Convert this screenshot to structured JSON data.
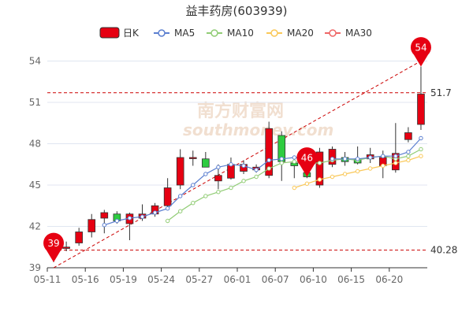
{
  "chart_data": {
    "type": "candlestick",
    "title": "益丰药房(603939)",
    "legend": {
      "placement": "top-center",
      "items": [
        {
          "key": "kline",
          "label": "日K",
          "color": "#e60012"
        },
        {
          "key": "ma5",
          "label": "MA5",
          "color": "#5b7fd0"
        },
        {
          "key": "ma10",
          "label": "MA10",
          "color": "#91cc75"
        },
        {
          "key": "ma20",
          "label": "MA20",
          "color": "#fac858"
        },
        {
          "key": "ma30",
          "label": "MA30",
          "color": "#ee6666"
        }
      ]
    },
    "colors": {
      "up": "#e60012",
      "down": "#2ecc40",
      "grid": "#e0e6f1",
      "axis": "#333333",
      "ref_line": "#cc0000",
      "trend_line": "#cc0000",
      "watermark": "#e8c9b0"
    },
    "watermark": "南方财富网 southmoney.com",
    "ylim": [
      39,
      55
    ],
    "y_ticks": [
      39,
      42,
      45,
      48,
      51,
      54
    ],
    "x_tick_labels": [
      "05-11",
      "05-16",
      "05-19",
      "05-24",
      "05-27",
      "06-01",
      "06-07",
      "06-10",
      "06-15",
      "06-20"
    ],
    "x_tick_indices": [
      0,
      3,
      6,
      9,
      12,
      15,
      18,
      21,
      24,
      27
    ],
    "x_tick_dates": [
      "05-11",
      "05-16",
      "05-19",
      "05-24",
      "05-27",
      "06-01",
      "06-07",
      "06-10",
      "06-15",
      "06-20"
    ],
    "candles": [
      {
        "o": 39.9,
        "c": 40.6,
        "h": 41.5,
        "l": 39.4
      },
      {
        "o": 40.4,
        "c": 40.5,
        "h": 40.9,
        "l": 40.2
      },
      {
        "o": 40.8,
        "c": 41.6,
        "h": 41.9,
        "l": 40.6
      },
      {
        "o": 41.6,
        "c": 42.5,
        "h": 42.9,
        "l": 41.2
      },
      {
        "o": 42.6,
        "c": 43.0,
        "h": 43.2,
        "l": 41.5
      },
      {
        "o": 42.9,
        "c": 42.4,
        "h": 43.1,
        "l": 42.2
      },
      {
        "o": 42.2,
        "c": 42.9,
        "h": 43.0,
        "l": 41.0
      },
      {
        "o": 42.6,
        "c": 42.9,
        "h": 43.6,
        "l": 42.4
      },
      {
        "o": 42.9,
        "c": 43.5,
        "h": 43.7,
        "l": 42.7
      },
      {
        "o": 43.5,
        "c": 44.8,
        "h": 45.5,
        "l": 43.3
      },
      {
        "o": 45.0,
        "c": 47.0,
        "h": 47.6,
        "l": 44.7
      },
      {
        "o": 47.0,
        "c": 47.0,
        "h": 47.5,
        "l": 46.4
      },
      {
        "o": 46.9,
        "c": 46.3,
        "h": 47.4,
        "l": 46.3
      },
      {
        "o": 45.3,
        "c": 45.7,
        "h": 46.5,
        "l": 44.7
      },
      {
        "o": 45.5,
        "c": 46.5,
        "h": 47.0,
        "l": 45.4
      },
      {
        "o": 46.0,
        "c": 46.5,
        "h": 46.8,
        "l": 45.8
      },
      {
        "o": 46.1,
        "c": 46.3,
        "h": 46.5,
        "l": 45.9
      },
      {
        "o": 45.7,
        "c": 49.1,
        "h": 49.6,
        "l": 45.5
      },
      {
        "o": 48.6,
        "c": 46.7,
        "h": 48.9,
        "l": 45.3
      },
      {
        "o": 46.6,
        "c": 46.4,
        "h": 46.9,
        "l": 45.5
      },
      {
        "o": 45.9,
        "c": 45.6,
        "h": 46.0,
        "l": 45.5
      },
      {
        "o": 45.0,
        "c": 47.4,
        "h": 47.7,
        "l": 44.8
      },
      {
        "o": 46.5,
        "c": 47.6,
        "h": 47.8,
        "l": 46.3
      },
      {
        "o": 47.0,
        "c": 46.7,
        "h": 47.4,
        "l": 46.4
      },
      {
        "o": 46.9,
        "c": 46.6,
        "h": 47.8,
        "l": 46.5
      },
      {
        "o": 46.9,
        "c": 47.2,
        "h": 47.7,
        "l": 46.6
      },
      {
        "o": 46.4,
        "c": 47.0,
        "h": 47.5,
        "l": 45.5
      },
      {
        "o": 46.1,
        "c": 47.3,
        "h": 49.5,
        "l": 45.9
      },
      {
        "o": 48.3,
        "c": 48.8,
        "h": 49.2,
        "l": 48.1
      },
      {
        "o": 49.4,
        "c": 51.6,
        "h": 53.6,
        "l": 49.0
      }
    ],
    "ma5": [
      null,
      null,
      null,
      null,
      42.1,
      42.4,
      42.6,
      42.7,
      43.0,
      43.3,
      44.2,
      45.0,
      45.8,
      46.3,
      46.5,
      46.4,
      46.1,
      46.8,
      46.9,
      47.0,
      46.9,
      null,
      46.9,
      46.9,
      46.9,
      47.0,
      47.1,
      47.1,
      47.4,
      48.4
    ],
    "ma10": [
      null,
      null,
      null,
      null,
      null,
      null,
      null,
      null,
      null,
      42.4,
      43.1,
      43.7,
      44.2,
      44.5,
      44.8,
      45.3,
      45.6,
      46.2,
      46.6,
      46.7,
      46.6,
      46.6,
      46.8,
      46.9,
      46.8,
      47.0,
      47.1,
      46.9,
      47.1,
      47.6
    ],
    "ma20": [
      null,
      null,
      null,
      null,
      null,
      null,
      null,
      null,
      null,
      null,
      null,
      null,
      null,
      null,
      null,
      null,
      null,
      null,
      null,
      44.8,
      45.1,
      45.4,
      45.6,
      45.8,
      46.0,
      46.2,
      46.4,
      46.6,
      46.8,
      47.1
    ],
    "ma30": [],
    "markers": [
      {
        "label": "39",
        "index": 0,
        "value": 39.4
      },
      {
        "label": "46",
        "index": 20,
        "value": 45.6
      },
      {
        "label": "54",
        "index": 29,
        "value": 53.6
      }
    ],
    "ref_lines": [
      {
        "label": "51.7",
        "value": 51.7
      },
      {
        "label": "40.28",
        "value": 40.28
      }
    ],
    "trend_line": {
      "from_index": 0,
      "from_value": 39.0,
      "to_index": 29,
      "to_value": 54.0
    }
  }
}
